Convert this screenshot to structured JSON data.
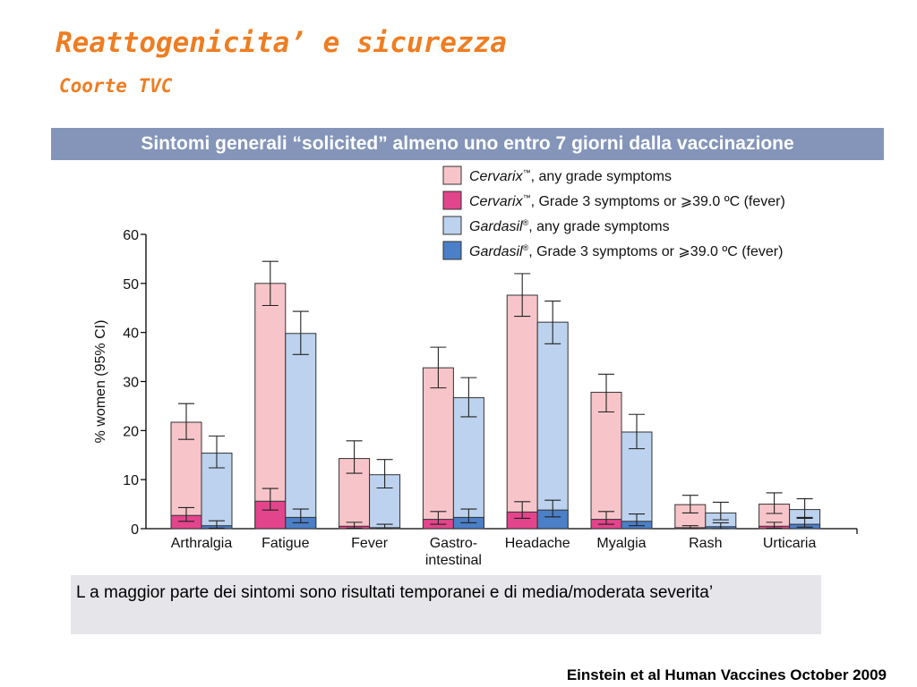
{
  "title": "Reattogenicita’ e sicurezza",
  "subtitle": "Coorte TVC",
  "banner": "Sintomi generali “solicited” almeno uno entro 7 giorni dalla vaccinazione",
  "note": "L a maggior parte dei sintomi sono risultati temporanei e di media/moderata severita’",
  "source": "Einstein et al Human Vaccines October 2009",
  "colors": {
    "cervarix_any": "#f7c5c9",
    "cervarix_g3": "#e2458b",
    "gardasil_any": "#bcd2ee",
    "gardasil_g3": "#4b7fc7",
    "title": "#ee7d22",
    "banner": "#8495b9"
  },
  "chart_data": {
    "type": "bar",
    "ylabel": "% women (95% CI)",
    "ylim": [
      0,
      60
    ],
    "yticks": [
      "0",
      "10",
      "20",
      "30",
      "40",
      "50",
      "60"
    ],
    "categories": [
      "Arthralgia",
      "Fatigue",
      "Fever",
      "Gastro-\nintestinal",
      "Headache",
      "Myalgia",
      "Rash",
      "Urticaria"
    ],
    "legend_position": "top-right",
    "legend": [
      {
        "brand": "Cervarix",
        "mark": "™",
        "text": ", any grade symptoms"
      },
      {
        "brand": "Cervarix",
        "mark": "™",
        "text": ", Grade 3 symptoms or ⩾39.0 ºC (fever)"
      },
      {
        "brand": "Gardasil",
        "mark": "®",
        "text": ", any grade symptoms"
      },
      {
        "brand": "Gardasil",
        "mark": "®",
        "text": ", Grade 3 symptoms or ⩾39.0 ºC (fever)"
      }
    ],
    "series": [
      {
        "values": [
          21.7,
          50.0,
          14.3,
          32.8,
          47.6,
          27.8,
          4.9,
          5.0
        ],
        "ci_low": [
          18.2,
          45.5,
          11.3,
          28.7,
          43.3,
          23.8,
          3.2,
          3.1
        ],
        "ci_high": [
          25.5,
          54.5,
          17.9,
          37.0,
          52.0,
          31.5,
          6.8,
          7.3
        ]
      },
      {
        "values": [
          2.7,
          5.6,
          0.5,
          1.9,
          3.4,
          1.9,
          0.2,
          0.5
        ],
        "ci_low": [
          1.5,
          3.8,
          0.1,
          0.9,
          2.1,
          0.9,
          0.0,
          0.1
        ],
        "ci_high": [
          4.3,
          8.2,
          1.3,
          3.5,
          5.5,
          3.5,
          0.6,
          1.3
        ]
      },
      {
        "values": [
          15.4,
          39.8,
          11.0,
          26.7,
          42.1,
          19.7,
          3.2,
          3.9
        ],
        "ci_low": [
          12.4,
          35.5,
          8.3,
          22.8,
          37.7,
          16.3,
          1.8,
          2.3
        ],
        "ci_high": [
          18.9,
          44.3,
          14.1,
          30.8,
          46.4,
          23.3,
          5.4,
          6.1
        ]
      },
      {
        "values": [
          0.6,
          2.3,
          0.2,
          2.3,
          3.8,
          1.5,
          0.4,
          0.9
        ],
        "ci_low": [
          0.1,
          1.2,
          0.0,
          1.2,
          2.4,
          0.6,
          0.0,
          0.3
        ],
        "ci_high": [
          1.6,
          4.0,
          0.9,
          4.0,
          5.8,
          3.0,
          1.2,
          2.1
        ]
      }
    ]
  }
}
